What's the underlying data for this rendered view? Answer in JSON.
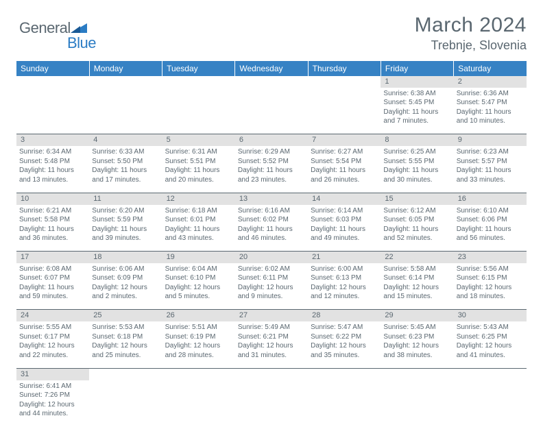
{
  "logo": {
    "part1": "General",
    "part2": "Blue"
  },
  "title": "March 2024",
  "location": "Trebnje, Slovenia",
  "colors": {
    "header_bg": "#3682c4",
    "header_text": "#ffffff",
    "daynum_bg": "#e2e2e2",
    "text": "#5a6770",
    "rule": "#5a6770"
  },
  "weekdays": [
    "Sunday",
    "Monday",
    "Tuesday",
    "Wednesday",
    "Thursday",
    "Friday",
    "Saturday"
  ],
  "weeks": [
    [
      null,
      null,
      null,
      null,
      null,
      {
        "n": "1",
        "sr": "Sunrise: 6:38 AM",
        "ss": "Sunset: 5:45 PM",
        "dl1": "Daylight: 11 hours",
        "dl2": "and 7 minutes."
      },
      {
        "n": "2",
        "sr": "Sunrise: 6:36 AM",
        "ss": "Sunset: 5:47 PM",
        "dl1": "Daylight: 11 hours",
        "dl2": "and 10 minutes."
      }
    ],
    [
      {
        "n": "3",
        "sr": "Sunrise: 6:34 AM",
        "ss": "Sunset: 5:48 PM",
        "dl1": "Daylight: 11 hours",
        "dl2": "and 13 minutes."
      },
      {
        "n": "4",
        "sr": "Sunrise: 6:33 AM",
        "ss": "Sunset: 5:50 PM",
        "dl1": "Daylight: 11 hours",
        "dl2": "and 17 minutes."
      },
      {
        "n": "5",
        "sr": "Sunrise: 6:31 AM",
        "ss": "Sunset: 5:51 PM",
        "dl1": "Daylight: 11 hours",
        "dl2": "and 20 minutes."
      },
      {
        "n": "6",
        "sr": "Sunrise: 6:29 AM",
        "ss": "Sunset: 5:52 PM",
        "dl1": "Daylight: 11 hours",
        "dl2": "and 23 minutes."
      },
      {
        "n": "7",
        "sr": "Sunrise: 6:27 AM",
        "ss": "Sunset: 5:54 PM",
        "dl1": "Daylight: 11 hours",
        "dl2": "and 26 minutes."
      },
      {
        "n": "8",
        "sr": "Sunrise: 6:25 AM",
        "ss": "Sunset: 5:55 PM",
        "dl1": "Daylight: 11 hours",
        "dl2": "and 30 minutes."
      },
      {
        "n": "9",
        "sr": "Sunrise: 6:23 AM",
        "ss": "Sunset: 5:57 PM",
        "dl1": "Daylight: 11 hours",
        "dl2": "and 33 minutes."
      }
    ],
    [
      {
        "n": "10",
        "sr": "Sunrise: 6:21 AM",
        "ss": "Sunset: 5:58 PM",
        "dl1": "Daylight: 11 hours",
        "dl2": "and 36 minutes."
      },
      {
        "n": "11",
        "sr": "Sunrise: 6:20 AM",
        "ss": "Sunset: 5:59 PM",
        "dl1": "Daylight: 11 hours",
        "dl2": "and 39 minutes."
      },
      {
        "n": "12",
        "sr": "Sunrise: 6:18 AM",
        "ss": "Sunset: 6:01 PM",
        "dl1": "Daylight: 11 hours",
        "dl2": "and 43 minutes."
      },
      {
        "n": "13",
        "sr": "Sunrise: 6:16 AM",
        "ss": "Sunset: 6:02 PM",
        "dl1": "Daylight: 11 hours",
        "dl2": "and 46 minutes."
      },
      {
        "n": "14",
        "sr": "Sunrise: 6:14 AM",
        "ss": "Sunset: 6:03 PM",
        "dl1": "Daylight: 11 hours",
        "dl2": "and 49 minutes."
      },
      {
        "n": "15",
        "sr": "Sunrise: 6:12 AM",
        "ss": "Sunset: 6:05 PM",
        "dl1": "Daylight: 11 hours",
        "dl2": "and 52 minutes."
      },
      {
        "n": "16",
        "sr": "Sunrise: 6:10 AM",
        "ss": "Sunset: 6:06 PM",
        "dl1": "Daylight: 11 hours",
        "dl2": "and 56 minutes."
      }
    ],
    [
      {
        "n": "17",
        "sr": "Sunrise: 6:08 AM",
        "ss": "Sunset: 6:07 PM",
        "dl1": "Daylight: 11 hours",
        "dl2": "and 59 minutes."
      },
      {
        "n": "18",
        "sr": "Sunrise: 6:06 AM",
        "ss": "Sunset: 6:09 PM",
        "dl1": "Daylight: 12 hours",
        "dl2": "and 2 minutes."
      },
      {
        "n": "19",
        "sr": "Sunrise: 6:04 AM",
        "ss": "Sunset: 6:10 PM",
        "dl1": "Daylight: 12 hours",
        "dl2": "and 5 minutes."
      },
      {
        "n": "20",
        "sr": "Sunrise: 6:02 AM",
        "ss": "Sunset: 6:11 PM",
        "dl1": "Daylight: 12 hours",
        "dl2": "and 9 minutes."
      },
      {
        "n": "21",
        "sr": "Sunrise: 6:00 AM",
        "ss": "Sunset: 6:13 PM",
        "dl1": "Daylight: 12 hours",
        "dl2": "and 12 minutes."
      },
      {
        "n": "22",
        "sr": "Sunrise: 5:58 AM",
        "ss": "Sunset: 6:14 PM",
        "dl1": "Daylight: 12 hours",
        "dl2": "and 15 minutes."
      },
      {
        "n": "23",
        "sr": "Sunrise: 5:56 AM",
        "ss": "Sunset: 6:15 PM",
        "dl1": "Daylight: 12 hours",
        "dl2": "and 18 minutes."
      }
    ],
    [
      {
        "n": "24",
        "sr": "Sunrise: 5:55 AM",
        "ss": "Sunset: 6:17 PM",
        "dl1": "Daylight: 12 hours",
        "dl2": "and 22 minutes."
      },
      {
        "n": "25",
        "sr": "Sunrise: 5:53 AM",
        "ss": "Sunset: 6:18 PM",
        "dl1": "Daylight: 12 hours",
        "dl2": "and 25 minutes."
      },
      {
        "n": "26",
        "sr": "Sunrise: 5:51 AM",
        "ss": "Sunset: 6:19 PM",
        "dl1": "Daylight: 12 hours",
        "dl2": "and 28 minutes."
      },
      {
        "n": "27",
        "sr": "Sunrise: 5:49 AM",
        "ss": "Sunset: 6:21 PM",
        "dl1": "Daylight: 12 hours",
        "dl2": "and 31 minutes."
      },
      {
        "n": "28",
        "sr": "Sunrise: 5:47 AM",
        "ss": "Sunset: 6:22 PM",
        "dl1": "Daylight: 12 hours",
        "dl2": "and 35 minutes."
      },
      {
        "n": "29",
        "sr": "Sunrise: 5:45 AM",
        "ss": "Sunset: 6:23 PM",
        "dl1": "Daylight: 12 hours",
        "dl2": "and 38 minutes."
      },
      {
        "n": "30",
        "sr": "Sunrise: 5:43 AM",
        "ss": "Sunset: 6:25 PM",
        "dl1": "Daylight: 12 hours",
        "dl2": "and 41 minutes."
      }
    ],
    [
      {
        "n": "31",
        "sr": "Sunrise: 6:41 AM",
        "ss": "Sunset: 7:26 PM",
        "dl1": "Daylight: 12 hours",
        "dl2": "and 44 minutes."
      },
      null,
      null,
      null,
      null,
      null,
      null
    ]
  ]
}
